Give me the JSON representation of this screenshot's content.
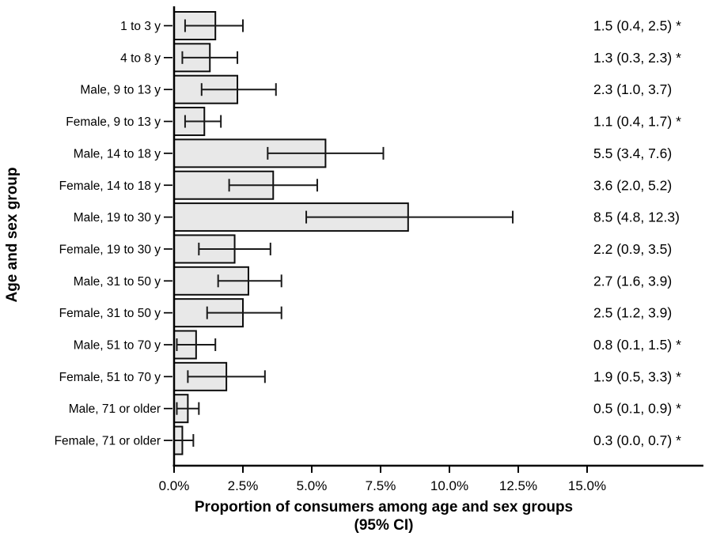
{
  "chart_data": {
    "type": "bar",
    "orientation": "horizontal",
    "xlabel_line1": "Proportion of consumers among age and sex groups",
    "xlabel_line2": "(95% CI)",
    "ylabel": "Age and sex group",
    "xlim": [
      0,
      16.5
    ],
    "grid": false,
    "legend_position": "none",
    "x_ticks": [
      0,
      2.5,
      5,
      7.5,
      10,
      12.5,
      15
    ],
    "x_tick_labels": [
      "0.0%",
      "2.5%",
      "5.0%",
      "7.5%",
      "10.0%",
      "12.5%",
      "15.0%"
    ],
    "categories": [
      "1 to 3 y",
      "4 to 8 y",
      "Male, 9 to 13 y",
      "Female, 9 to 13 y",
      "Male, 14 to 18 y",
      "Female, 14 to 18 y",
      "Male, 19 to 30 y",
      "Female, 19 to 30 y",
      "Male, 31 to 50 y",
      "Female, 31 to 50 y",
      "Male, 51 to 70 y",
      "Female, 51 to 70 y",
      "Male, 71 or older",
      "Female, 71 or older"
    ],
    "values": [
      1.5,
      1.3,
      2.3,
      1.1,
      5.5,
      3.6,
      8.5,
      2.2,
      2.7,
      2.5,
      0.8,
      1.9,
      0.5,
      0.3
    ],
    "ci_low": [
      0.4,
      0.3,
      1.0,
      0.4,
      3.4,
      2.0,
      4.8,
      0.9,
      1.6,
      1.2,
      0.1,
      0.5,
      0.1,
      0.0
    ],
    "ci_high": [
      2.5,
      2.3,
      3.7,
      1.7,
      7.6,
      5.2,
      12.3,
      3.5,
      3.9,
      3.9,
      1.5,
      3.3,
      0.9,
      0.7
    ],
    "annotations": [
      "1.5 (0.4, 2.5) *",
      "1.3 (0.3, 2.3) *",
      "2.3 (1.0, 3.7)",
      "1.1 (0.4, 1.7) *",
      "5.5 (3.4, 7.6)",
      "3.6 (2.0, 5.2)",
      "8.5 (4.8, 12.3)",
      "2.2 (0.9, 3.5)",
      "2.7 (1.6, 3.9)",
      "2.5 (1.2, 3.9)",
      "0.8 (0.1, 1.5) *",
      "1.9 (0.5, 3.3) *",
      "0.5 (0.1, 0.9) *",
      "0.3 (0.0, 0.7) *"
    ],
    "significant": [
      true,
      true,
      false,
      true,
      false,
      false,
      false,
      false,
      false,
      false,
      true,
      true,
      true,
      true
    ],
    "colors": {
      "bar_fill": "#e8e8e8",
      "bar_border": "#0d0d0d",
      "error_bar": "#1a1a1a",
      "axis": "#000000",
      "text": "#000000",
      "background": "#ffffff"
    }
  }
}
